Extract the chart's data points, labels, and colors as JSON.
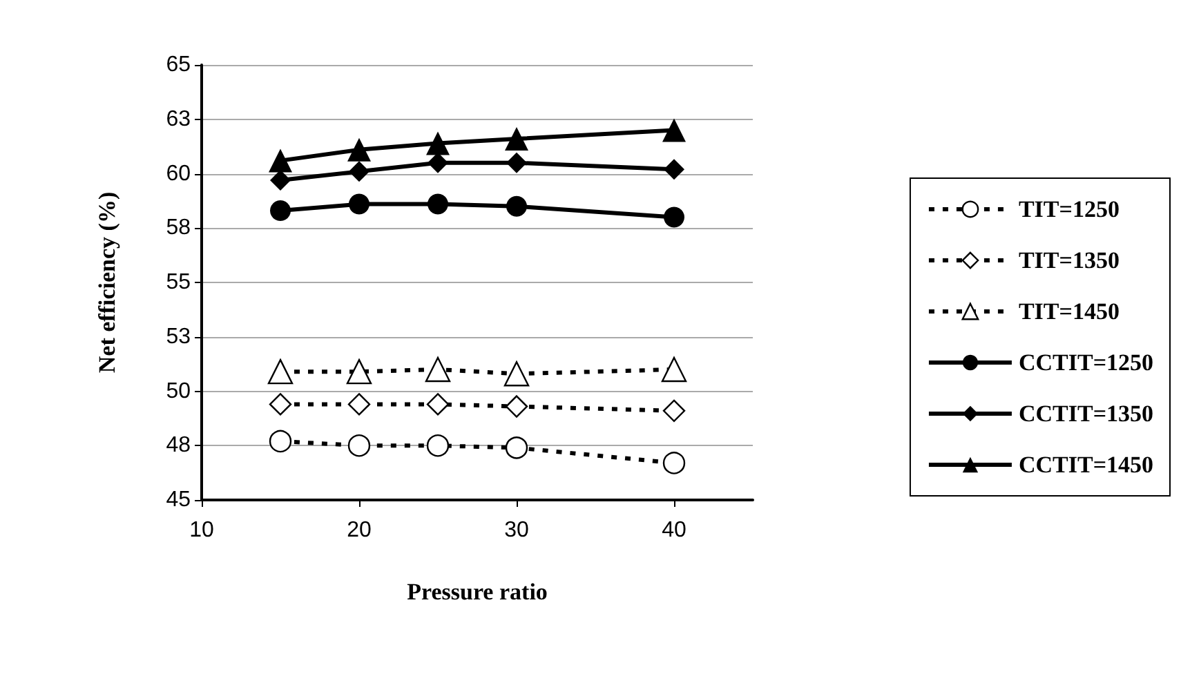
{
  "chart_data": {
    "type": "line",
    "xlabel": "Pressure ratio",
    "ylabel": "Net efficiency (%)",
    "x": [
      15,
      20,
      25,
      30,
      40
    ],
    "series": [
      {
        "name": "TIT=1250",
        "color": "#000000",
        "marker": "circle",
        "line_style": "dashed",
        "values": [
          47.7,
          47.5,
          47.5,
          47.4,
          46.7
        ]
      },
      {
        "name": "TIT=1350",
        "color": "#000000",
        "marker": "diamond",
        "line_style": "dashed",
        "values": [
          49.4,
          49.4,
          49.4,
          49.3,
          49.1
        ]
      },
      {
        "name": "TIT=1450",
        "color": "#000000",
        "marker": "triangle",
        "line_style": "dashed",
        "values": [
          50.9,
          50.9,
          51.0,
          50.8,
          51.0
        ]
      },
      {
        "name": "CCTIT=1250",
        "color": "#000000",
        "marker": "circle",
        "line_style": "solid",
        "values": [
          58.3,
          58.6,
          58.6,
          58.5,
          58.0
        ]
      },
      {
        "name": "CCTIT=1350",
        "color": "#000000",
        "marker": "diamond",
        "line_style": "solid",
        "values": [
          59.7,
          60.1,
          60.5,
          60.5,
          60.2
        ]
      },
      {
        "name": "CCTIT=1450",
        "color": "#000000",
        "marker": "triangle",
        "line_style": "solid",
        "values": [
          60.6,
          61.1,
          61.4,
          61.6,
          62.0
        ]
      }
    ],
    "xlim": [
      10,
      45
    ],
    "xticks": [
      10,
      20,
      30,
      40
    ],
    "ylim": [
      45,
      65
    ],
    "yticks": [
      45,
      {
        "value": 47.5,
        "label": "48"
      },
      50,
      {
        "value": 52.5,
        "label": "53"
      },
      55,
      {
        "value": 57.5,
        "label": "58"
      },
      60,
      {
        "value": 62.5,
        "label": "63"
      },
      65
    ],
    "grid": "y",
    "legend": "right"
  }
}
